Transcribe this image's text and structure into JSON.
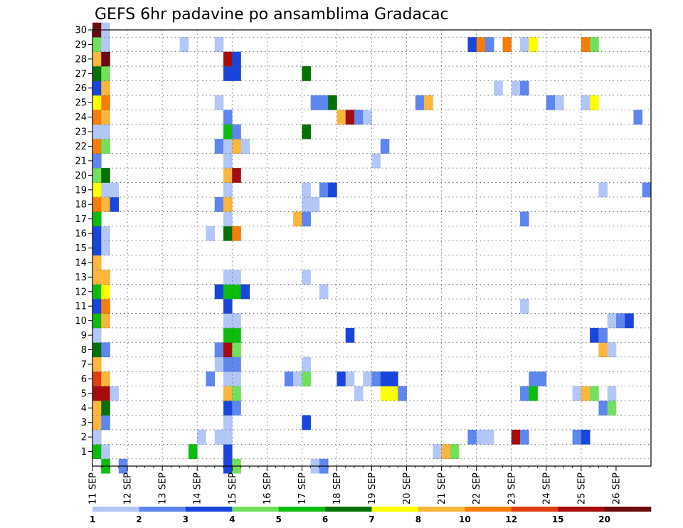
{
  "chart_data": {
    "type": "heatmap",
    "title": "GEFS 6hr padavine po ansamblima Gradacac",
    "xlabel": "",
    "ylabel": "",
    "x_step_hours": 6,
    "x_range": [
      "11 SEP 00Z",
      "26 SEP 00Z"
    ],
    "x_ticks": [
      "11 SEP",
      "12 SEP",
      "13 SEP",
      "14 SEP",
      "15 SEP",
      "16 SEP",
      "17 SEP",
      "18 SEP",
      "19 SEP",
      "20 SEP",
      "21 SEP",
      "22 SEP",
      "23 SEP",
      "24 SEP",
      "25 SEP",
      "26 SEP"
    ],
    "y_ticks": [
      "1",
      "2",
      "3",
      "4",
      "5",
      "6",
      "7",
      "8",
      "9",
      "10",
      "11",
      "12",
      "13",
      "14",
      "15",
      "16",
      "17",
      "18",
      "19",
      "20",
      "21",
      "22",
      "23",
      "24",
      "25",
      "26",
      "27",
      "28",
      "29",
      "30"
    ],
    "y_range": [
      0,
      30
    ],
    "grid": true,
    "color_levels": [
      "1",
      "2",
      "3",
      "4",
      "5",
      "6",
      "7",
      "8",
      "10",
      "12",
      "15",
      "20"
    ],
    "colors": [
      "#b3c7f7",
      "#5e86ef",
      "#1846dc",
      "#71e15b",
      "#0dbd0d",
      "#057005",
      "#ffff00",
      "#fcb63c",
      "#f77d0a",
      "#e03d12",
      "#a50c0c",
      "#6b0d0d"
    ],
    "cells": [
      [
        0,
        1,
        4
      ],
      [
        0,
        2,
        0
      ],
      [
        0,
        3,
        7
      ],
      [
        0,
        4,
        7
      ],
      [
        0,
        5,
        10
      ],
      [
        0,
        6,
        9
      ],
      [
        0,
        7,
        7
      ],
      [
        0,
        8,
        5
      ],
      [
        0,
        9,
        0
      ],
      [
        0,
        10,
        4
      ],
      [
        0,
        11,
        2
      ],
      [
        0,
        12,
        4
      ],
      [
        0,
        13,
        7
      ],
      [
        0,
        14,
        7
      ],
      [
        0,
        15,
        2
      ],
      [
        0,
        16,
        2
      ],
      [
        0,
        17,
        4
      ],
      [
        0,
        18,
        8
      ],
      [
        0,
        19,
        6
      ],
      [
        0,
        20,
        3
      ],
      [
        0,
        21,
        1
      ],
      [
        0,
        22,
        8
      ],
      [
        0,
        23,
        0
      ],
      [
        0,
        24,
        8
      ],
      [
        0,
        25,
        6
      ],
      [
        0,
        26,
        2
      ],
      [
        0,
        27,
        5
      ],
      [
        0,
        28,
        7
      ],
      [
        0,
        29,
        3
      ],
      [
        0,
        30,
        11
      ],
      [
        1,
        0,
        4
      ],
      [
        1,
        1,
        0
      ],
      [
        1,
        3,
        1
      ],
      [
        1,
        4,
        5
      ],
      [
        1,
        5,
        10
      ],
      [
        1,
        6,
        7
      ],
      [
        1,
        8,
        1
      ],
      [
        1,
        10,
        7
      ],
      [
        1,
        11,
        8
      ],
      [
        1,
        12,
        6
      ],
      [
        1,
        13,
        7
      ],
      [
        1,
        15,
        0
      ],
      [
        1,
        16,
        0
      ],
      [
        1,
        18,
        7
      ],
      [
        1,
        19,
        0
      ],
      [
        1,
        20,
        5
      ],
      [
        1,
        22,
        3
      ],
      [
        1,
        23,
        0
      ],
      [
        1,
        24,
        7
      ],
      [
        1,
        25,
        8
      ],
      [
        1,
        26,
        7
      ],
      [
        1,
        27,
        3
      ],
      [
        1,
        28,
        11
      ],
      [
        1,
        29,
        0
      ],
      [
        1,
        30,
        0
      ],
      [
        2,
        5,
        0
      ],
      [
        2,
        18,
        2
      ],
      [
        2,
        19,
        0
      ],
      [
        3,
        0,
        1
      ],
      [
        10,
        29,
        0
      ],
      [
        11,
        1,
        4
      ],
      [
        12,
        2,
        0
      ],
      [
        13,
        6,
        1
      ],
      [
        13,
        16,
        0
      ],
      [
        14,
        2,
        0
      ],
      [
        14,
        7,
        0
      ],
      [
        14,
        8,
        1
      ],
      [
        14,
        12,
        2
      ],
      [
        14,
        18,
        1
      ],
      [
        14,
        22,
        1
      ],
      [
        14,
        25,
        0
      ],
      [
        14,
        29,
        0
      ],
      [
        15,
        0,
        2
      ],
      [
        15,
        1,
        2
      ],
      [
        15,
        2,
        0
      ],
      [
        15,
        3,
        0
      ],
      [
        15,
        4,
        2
      ],
      [
        15,
        5,
        7
      ],
      [
        15,
        6,
        0
      ],
      [
        15,
        7,
        1
      ],
      [
        15,
        8,
        10
      ],
      [
        15,
        9,
        4
      ],
      [
        15,
        10,
        0
      ],
      [
        15,
        11,
        2
      ],
      [
        15,
        12,
        4
      ],
      [
        15,
        13,
        0
      ],
      [
        15,
        16,
        5
      ],
      [
        15,
        17,
        0
      ],
      [
        15,
        18,
        7
      ],
      [
        15,
        19,
        0
      ],
      [
        15,
        20,
        7
      ],
      [
        15,
        21,
        0
      ],
      [
        15,
        22,
        0
      ],
      [
        15,
        23,
        4
      ],
      [
        15,
        24,
        1
      ],
      [
        15,
        27,
        2
      ],
      [
        15,
        28,
        10
      ],
      [
        16,
        0,
        3
      ],
      [
        16,
        4,
        1
      ],
      [
        16,
        5,
        3
      ],
      [
        16,
        6,
        0
      ],
      [
        16,
        7,
        1
      ],
      [
        16,
        8,
        3
      ],
      [
        16,
        9,
        4
      ],
      [
        16,
        10,
        0
      ],
      [
        16,
        12,
        4
      ],
      [
        16,
        13,
        0
      ],
      [
        16,
        16,
        8
      ],
      [
        16,
        20,
        10
      ],
      [
        16,
        22,
        7
      ],
      [
        16,
        23,
        1
      ],
      [
        16,
        27,
        2
      ],
      [
        16,
        28,
        2
      ],
      [
        17,
        12,
        2
      ],
      [
        17,
        22,
        0
      ],
      [
        22,
        6,
        1
      ],
      [
        23,
        6,
        0
      ],
      [
        23,
        17,
        7
      ],
      [
        24,
        3,
        2
      ],
      [
        24,
        6,
        3
      ],
      [
        24,
        7,
        0
      ],
      [
        24,
        13,
        0
      ],
      [
        24,
        17,
        1
      ],
      [
        24,
        18,
        0
      ],
      [
        24,
        19,
        0
      ],
      [
        24,
        23,
        5
      ],
      [
        24,
        27,
        5
      ],
      [
        25,
        0,
        0
      ],
      [
        25,
        18,
        0
      ],
      [
        25,
        25,
        1
      ],
      [
        26,
        0,
        1
      ],
      [
        26,
        12,
        0
      ],
      [
        26,
        19,
        1
      ],
      [
        26,
        25,
        1
      ],
      [
        27,
        19,
        2
      ],
      [
        27,
        25,
        5
      ],
      [
        28,
        6,
        2
      ],
      [
        28,
        24,
        7
      ],
      [
        29,
        6,
        0
      ],
      [
        29,
        9,
        2
      ],
      [
        29,
        24,
        10
      ],
      [
        30,
        5,
        0
      ],
      [
        30,
        24,
        1
      ],
      [
        31,
        6,
        0
      ],
      [
        31,
        24,
        0
      ],
      [
        32,
        6,
        1
      ],
      [
        32,
        21,
        0
      ],
      [
        33,
        5,
        6
      ],
      [
        33,
        6,
        2
      ],
      [
        33,
        22,
        1
      ],
      [
        34,
        5,
        6
      ],
      [
        34,
        6,
        2
      ],
      [
        35,
        5,
        1
      ],
      [
        37,
        25,
        1
      ],
      [
        38,
        25,
        7
      ],
      [
        39,
        1,
        0
      ],
      [
        40,
        1,
        7
      ],
      [
        41,
        1,
        3
      ],
      [
        43,
        2,
        1
      ],
      [
        43,
        29,
        2
      ],
      [
        44,
        2,
        0
      ],
      [
        44,
        29,
        8
      ],
      [
        45,
        2,
        0
      ],
      [
        45,
        29,
        1
      ],
      [
        46,
        26,
        0
      ],
      [
        47,
        29,
        8
      ],
      [
        48,
        2,
        10
      ],
      [
        48,
        26,
        0
      ],
      [
        49,
        2,
        1
      ],
      [
        49,
        5,
        1
      ],
      [
        49,
        11,
        0
      ],
      [
        49,
        17,
        1
      ],
      [
        49,
        26,
        1
      ],
      [
        49,
        29,
        0
      ],
      [
        50,
        5,
        4
      ],
      [
        50,
        6,
        1
      ],
      [
        50,
        29,
        6
      ],
      [
        51,
        6,
        1
      ],
      [
        52,
        25,
        1
      ],
      [
        53,
        25,
        0
      ],
      [
        55,
        2,
        1
      ],
      [
        55,
        5,
        0
      ],
      [
        56,
        2,
        2
      ],
      [
        56,
        5,
        7
      ],
      [
        56,
        25,
        0
      ],
      [
        56,
        29,
        8
      ],
      [
        57,
        5,
        3
      ],
      [
        57,
        9,
        2
      ],
      [
        57,
        25,
        6
      ],
      [
        57,
        29,
        3
      ],
      [
        58,
        4,
        1
      ],
      [
        58,
        8,
        7
      ],
      [
        58,
        9,
        1
      ],
      [
        58,
        19,
        0
      ],
      [
        59,
        4,
        3
      ],
      [
        59,
        5,
        0
      ],
      [
        59,
        8,
        0
      ],
      [
        59,
        10,
        0
      ],
      [
        60,
        10,
        1
      ],
      [
        61,
        10,
        2
      ],
      [
        62,
        24,
        1
      ],
      [
        63,
        19,
        1
      ]
    ]
  }
}
